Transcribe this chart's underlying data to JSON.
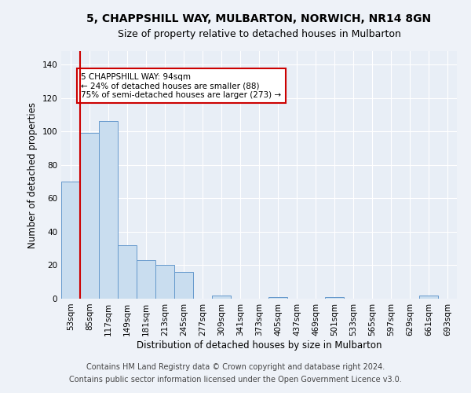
{
  "title1": "5, CHAPPSHILL WAY, MULBARTON, NORWICH, NR14 8GN",
  "title2": "Size of property relative to detached houses in Mulbarton",
  "xlabel": "Distribution of detached houses by size in Mulbarton",
  "ylabel": "Number of detached properties",
  "bar_labels": [
    "53sqm",
    "85sqm",
    "117sqm",
    "149sqm",
    "181sqm",
    "213sqm",
    "245sqm",
    "277sqm",
    "309sqm",
    "341sqm",
    "373sqm",
    "405sqm",
    "437sqm",
    "469sqm",
    "501sqm",
    "533sqm",
    "565sqm",
    "597sqm",
    "629sqm",
    "661sqm",
    "693sqm"
  ],
  "bar_values": [
    70,
    99,
    106,
    32,
    23,
    20,
    16,
    0,
    2,
    0,
    0,
    1,
    0,
    0,
    1,
    0,
    0,
    0,
    0,
    2,
    0
  ],
  "bar_color": "#c9ddef",
  "bar_edgecolor": "#6699cc",
  "vline_color": "#cc0000",
  "annotation_text": "5 CHAPPSHILL WAY: 94sqm\n← 24% of detached houses are smaller (88)\n75% of semi-detached houses are larger (273) →",
  "annotation_box_edgecolor": "#cc0000",
  "annotation_box_facecolor": "#ffffff",
  "footnote1": "Contains HM Land Registry data © Crown copyright and database right 2024.",
  "footnote2": "Contains public sector information licensed under the Open Government Licence v3.0.",
  "ylim": [
    0,
    148
  ],
  "yticks": [
    0,
    20,
    40,
    60,
    80,
    100,
    120,
    140
  ],
  "title1_fontsize": 10,
  "title2_fontsize": 9,
  "xlabel_fontsize": 8.5,
  "ylabel_fontsize": 8.5,
  "tick_fontsize": 7.5,
  "annotation_fontsize": 7.5,
  "footnote_fontsize": 7,
  "background_color": "#eef2f8",
  "plot_background_color": "#e8eef6"
}
